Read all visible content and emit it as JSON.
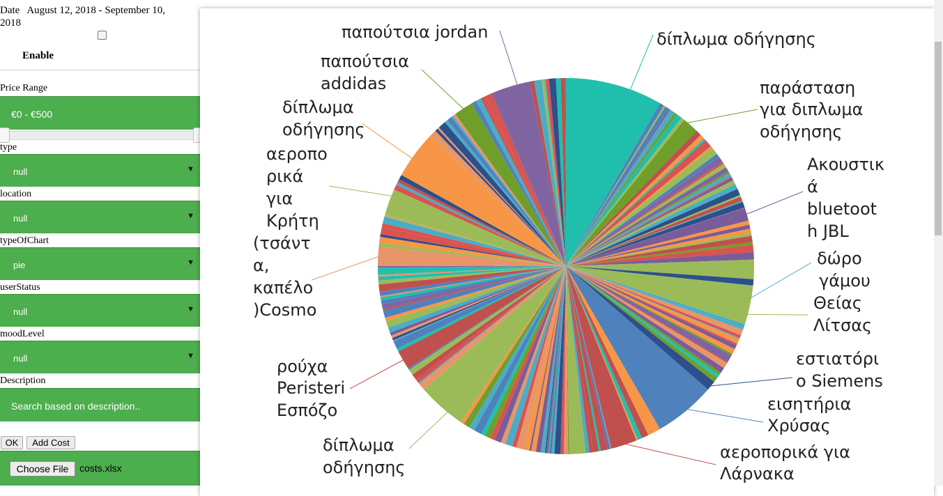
{
  "sidebar": {
    "date_label": "Date",
    "date_range": "August 12, 2018 - September 10, 2018",
    "enable_label": "Enable",
    "price_label": "Price Range",
    "price_value": "€0 - €500",
    "filters": [
      {
        "label": "type",
        "value": "null"
      },
      {
        "label": "location",
        "value": "null"
      },
      {
        "label": "typeOfChart",
        "value": "pie"
      },
      {
        "label": "userStatus",
        "value": "null"
      },
      {
        "label": "moodLevel",
        "value": "null"
      }
    ],
    "description_label": "Description",
    "description_placeholder": "Search based on description..",
    "ok_label": "OK",
    "add_cost_label": "Add Cost",
    "choose_file_label": "Choose File",
    "file_name": "costs.xlsx"
  },
  "chart_data": {
    "type": "pie",
    "slice_labels": [
      "δίπλωμα οδήγησης",
      "παράσταση για διπλωμα οδήγησης",
      "Ακουστικά bluetooth JBL",
      "δώρο γάμου Θείας Λίτσας",
      "εστιατόριο Siemens",
      "εισητήρια Χρύσας",
      "αεροπορικά για Λάρνακα",
      "δίπλωμα οδήγησης",
      "ρούχα Peristeri Εσπόζο",
      "αεροπορικά για Κρήτη (τσάντα, καπέλο )Cosmo",
      "δίπλωμα οδήγησης",
      "παπούτσια addidas",
      "παπούτσια jordan"
    ],
    "highlighted_slices": [
      {
        "label": "δίπλωμα οδήγησης",
        "color": "#20bfad"
      },
      {
        "label": "παράσταση για διπλωμα οδήγησης",
        "color": "#6f9e2b"
      },
      {
        "label": "Ακουστικά bluetooth JBL",
        "color": "#7a5c9a"
      },
      {
        "label": "δώρο γάμου Θείας Λίτσας",
        "color": "#9bbb59"
      },
      {
        "label": "εστιατόριο Siemens",
        "color": "#2d4f8a"
      },
      {
        "label": "εισητήρια Χρύσας",
        "color": "#4f81bd"
      },
      {
        "label": "αεροπορικά για Λάρνακα",
        "color": "#c0504d"
      },
      {
        "label": "δίπλωμα οδήγησης",
        "color": "#9bbb59"
      },
      {
        "label": "ρούχα Peristeri Εσπόζο",
        "color": "#c0504d"
      },
      {
        "label": "αεροπορικά για Κρήτη (τσάντα, καπέλο )Cosmo",
        "color": "#e8956a"
      },
      {
        "label": "δίπλωμα οδήγησης",
        "color": "#f79646"
      },
      {
        "label": "παπούτσια addidas",
        "color": "#6f9e2b"
      },
      {
        "label": "παπούτσια jordan",
        "color": "#8064a2"
      }
    ],
    "palette": [
      "#20bfad",
      "#c0504d",
      "#9bbb59",
      "#8064a2",
      "#4bacc6",
      "#f79646",
      "#4f81bd",
      "#2d4f8a",
      "#e8956a",
      "#6f9e2b",
      "#7a5c9a",
      "#d9534f"
    ]
  },
  "colors": {
    "sidebar_green": "#4cae4c",
    "page_bg": "#ffffff"
  }
}
